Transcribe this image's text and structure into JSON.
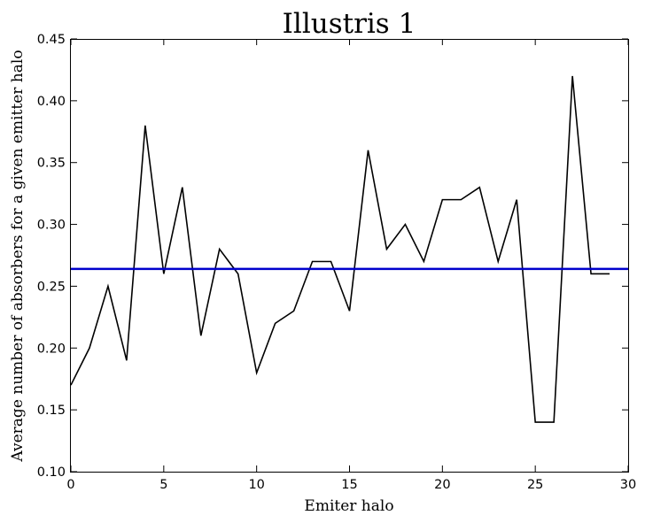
{
  "chart_data": {
    "type": "line",
    "title": "Illustris 1",
    "xlabel": "Emiter halo",
    "ylabel": "Average number of absorbers for a given emitter halo",
    "xlim": [
      0,
      30
    ],
    "ylim": [
      0.1,
      0.45
    ],
    "x_ticks": [
      "0",
      "5",
      "10",
      "15",
      "20",
      "25",
      "30"
    ],
    "y_ticks": [
      "0.10",
      "0.15",
      "0.20",
      "0.25",
      "0.30",
      "0.35",
      "0.40",
      "0.45"
    ],
    "grid": false,
    "legend": "none",
    "series": [
      {
        "color": "#000000",
        "x": [
          0,
          1,
          2,
          3,
          4,
          5,
          6,
          7,
          8,
          9,
          10,
          11,
          12,
          13,
          14,
          15,
          16,
          17,
          18,
          19,
          20,
          21,
          22,
          23,
          24,
          25,
          26,
          27,
          28,
          29
        ],
        "values": [
          0.17,
          0.2,
          0.25,
          0.19,
          0.38,
          0.26,
          0.33,
          0.21,
          0.28,
          0.26,
          0.18,
          0.22,
          0.23,
          0.27,
          0.27,
          0.23,
          0.36,
          0.28,
          0.3,
          0.27,
          0.32,
          0.32,
          0.33,
          0.27,
          0.32,
          0.14,
          0.14,
          0.42,
          0.26,
          0.26
        ]
      }
    ],
    "mean_line": {
      "value": 0.264,
      "color": "#0000cc"
    }
  }
}
